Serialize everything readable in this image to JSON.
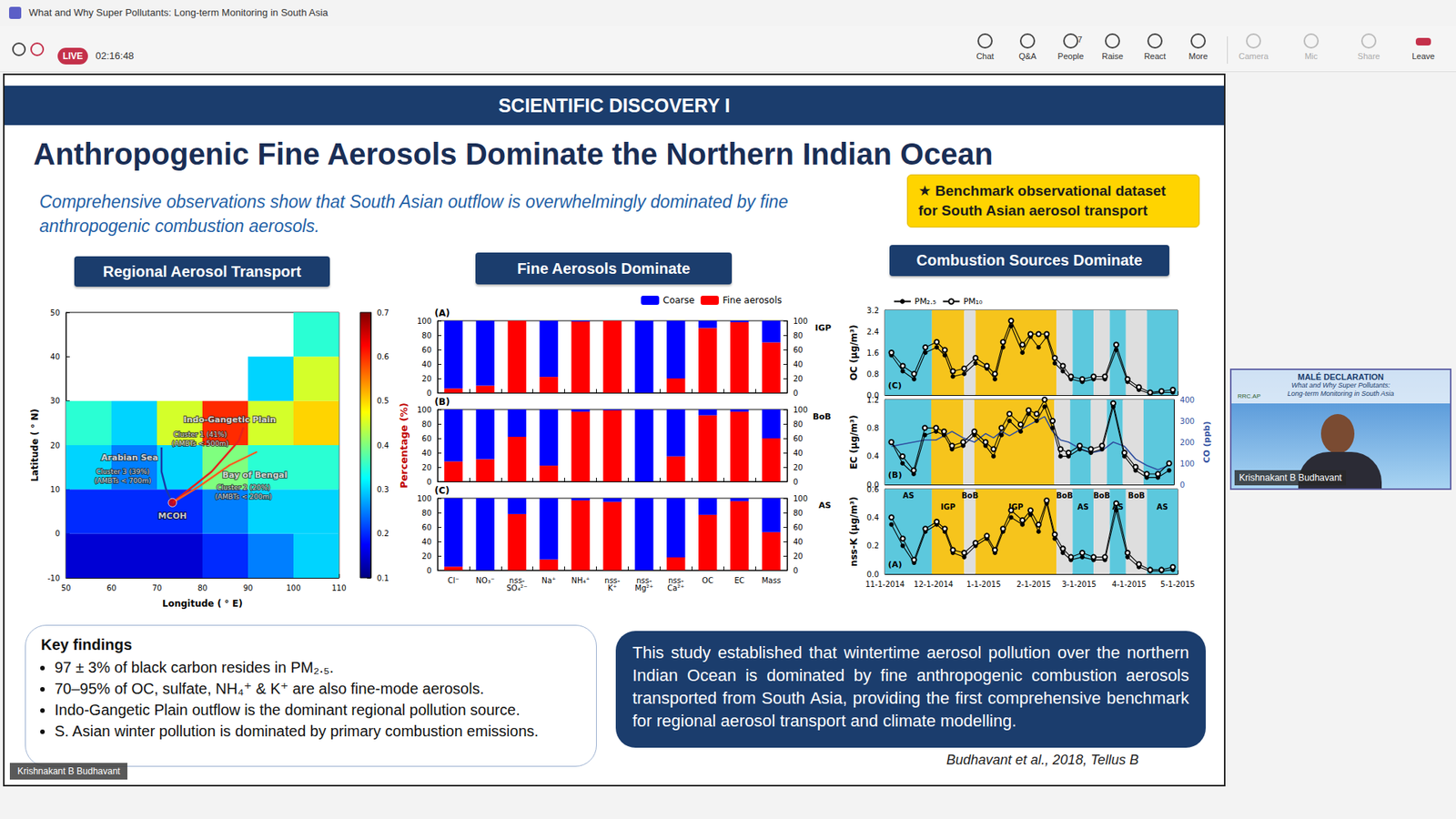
{
  "window": {
    "title": "What and Why Super Pollutants: Long-term Monitoring in South Asia",
    "live": "LIVE",
    "timer": "02:16:48",
    "buttons": [
      "Chat",
      "Q&A",
      "People",
      "Raise",
      "React",
      "More",
      "Camera",
      "Mic",
      "Share",
      "Leave"
    ],
    "people_count": 7
  },
  "slide": {
    "header": "SCIENTIFIC DISCOVERY I",
    "title": "Anthropogenic Fine Aerosols Dominate the Northern Indian Ocean",
    "subtitle": "Comprehensive observations show that South Asian outflow is overwhelmingly dominated by fine anthropogenic combustion aerosols.",
    "badge": "★ Benchmark observational dataset for South Asian aerosol transport",
    "key_findings": {
      "title": "Key findings",
      "items": [
        "97 ± 3% of black carbon resides in PM₂.₅.",
        "70–95% of OC, sulfate, NH₄⁺ & K⁺ are also fine-mode aerosols.",
        "Indo-Gangetic Plain outflow is the dominant regional pollution source.",
        "S. Asian winter pollution is dominated by primary combustion emissions."
      ]
    },
    "conclusion": "This study established that wintertime aerosol pollution over the northern Indian Ocean is dominated by fine anthropogenic combustion aerosols transported from South Asia, providing the first comprehensive benchmark for regional aerosol transport and climate modelling.",
    "citation": "Budhavant  et al., 2018, Tellus B",
    "speaker_tag": "Krishnakant B Budhavant"
  },
  "thumbnail": {
    "title": "MALÉ DECLARATION",
    "subtitle": [
      "What and Why Super Pollutants:",
      "Long-term Monitoring in South Asia"
    ],
    "logo": "RRC.AP",
    "name": "Krishnakant B Budhavant"
  },
  "chart_data": [
    {
      "type": "map",
      "title": "Regional Aerosol Transport",
      "xlabel": "Longitude ( ° E)",
      "ylabel": "Latitude ( ° N)",
      "xlim": [
        50,
        110
      ],
      "xticks": [
        50,
        60,
        70,
        80,
        90,
        100,
        110
      ],
      "ylim": [
        -10,
        50
      ],
      "yticks": [
        -10,
        0,
        10,
        20,
        30,
        40,
        50
      ],
      "aod": {
        "lon_edges": [
          50,
          60,
          70,
          80,
          90,
          100,
          110
        ],
        "lat_edges": [
          -10,
          0,
          10,
          20,
          30,
          40,
          50
        ],
        "values": [
          [
            0.15,
            0.15,
            0.15,
            0.2,
            0.25,
            0.3
          ],
          [
            0.2,
            0.2,
            0.2,
            0.25,
            0.3,
            0.3
          ],
          [
            0.3,
            0.25,
            0.3,
            0.4,
            0.35,
            0.35
          ],
          [
            0.35,
            0.3,
            0.45,
            0.6,
            0.45,
            0.5
          ],
          [
            null,
            null,
            null,
            null,
            0.3,
            0.45
          ],
          [
            null,
            null,
            null,
            null,
            null,
            0.35
          ]
        ]
      },
      "colorbar": {
        "range": [
          0.1,
          0.7
        ],
        "ticks": [
          0.1,
          0.2,
          0.3,
          0.4,
          0.5,
          0.6,
          0.7
        ]
      },
      "trajectories": [
        {
          "color": "#e8201a",
          "path": [
            [
              89,
              24
            ],
            [
              88,
              21
            ],
            [
              82,
              14
            ],
            [
              73.4,
              7
            ]
          ]
        },
        {
          "color": "#ff5a1f",
          "path": [
            [
              92,
              18.5
            ],
            [
              86,
              15.5
            ],
            [
              79,
              10.5
            ],
            [
              73.4,
              7
            ]
          ]
        },
        {
          "color": "#1a3aa8",
          "path": [
            [
              71,
              19.5
            ],
            [
              71,
              14
            ],
            [
              72,
              10
            ],
            [
              73.4,
              7
            ]
          ]
        }
      ],
      "site": {
        "name": "MCOH",
        "lon": 73.4,
        "lat": 7,
        "color": "#e00000"
      },
      "region_labels": [
        {
          "text": "Indo-Gangetic Plain",
          "x": 86,
          "y": 25.8
        },
        {
          "text": "Arabian Sea",
          "x": 64,
          "y": 17.2
        },
        {
          "text": "Bay of Bengal",
          "x": 91.5,
          "y": 13.2
        }
      ],
      "cluster_notes": [
        {
          "text": "Cluster 1 (41%)",
          "x": 79.5,
          "y": 22.4
        },
        {
          "text": "(AMBTs < 500m)",
          "x": 79.5,
          "y": 20.3
        },
        {
          "text": "Cluster 3 (39%)",
          "x": 62.5,
          "y": 14
        },
        {
          "text": "(AMBTs < 700m)",
          "x": 62.5,
          "y": 11.9
        },
        {
          "text": "Cluster 2 (20%)",
          "x": 89,
          "y": 10.4
        },
        {
          "text": "(AMBTs < 200m)",
          "x": 89,
          "y": 8.3
        }
      ]
    },
    {
      "type": "bar",
      "title": "Fine Aerosols Dominate",
      "stacked": true,
      "legend": "top",
      "ylabel": "Percentage (%)",
      "categories": [
        "Cl⁻",
        "NO₃⁻",
        "nss-SO₄²⁻",
        "Na⁺",
        "NH₄⁺",
        "nss-K⁺",
        "nss-Mg²⁺",
        "nss-Ca²⁺",
        "OC",
        "EC",
        "Mass"
      ],
      "ylim": [
        0,
        100
      ],
      "yticks": [
        0,
        20,
        40,
        60,
        80,
        100
      ],
      "y2lim": [
        0,
        100
      ],
      "y2ticks": [
        0,
        20,
        40,
        60,
        80,
        100
      ],
      "panels": [
        {
          "label": "(A)",
          "region": "IGP",
          "series": [
            {
              "name": "Coarse",
              "color": "#0000ff",
              "values": [
                94,
                90,
                0,
                78,
                1,
                0,
                100,
                80,
                10,
                2,
                30
              ]
            },
            {
              "name": "Fine aerosols",
              "color": "#ff0000",
              "values": [
                6,
                10,
                100,
                22,
                99,
                100,
                0,
                20,
                90,
                98,
                70
              ]
            }
          ]
        },
        {
          "label": "(B)",
          "region": "BoB",
          "series": [
            {
              "name": "Coarse",
              "color": "#0000ff",
              "values": [
                72,
                69,
                38,
                78,
                3,
                1,
                100,
                65,
                8,
                3,
                40
              ]
            },
            {
              "name": "Fine aerosols",
              "color": "#ff0000",
              "values": [
                28,
                31,
                62,
                22,
                97,
                99,
                0,
                35,
                92,
                97,
                60
              ]
            }
          ]
        },
        {
          "label": "(C)",
          "region": "AS",
          "series": [
            {
              "name": "Coarse",
              "color": "#0000ff",
              "values": [
                95,
                100,
                22,
                85,
                3,
                5,
                100,
                82,
                23,
                4,
                47
              ]
            },
            {
              "name": "Fine aerosols",
              "color": "#ff0000",
              "values": [
                5,
                0,
                78,
                15,
                97,
                95,
                0,
                18,
                77,
                96,
                53
              ]
            }
          ]
        }
      ]
    },
    {
      "type": "line",
      "title": "Combustion Sources Dominate",
      "legend": "top",
      "x": [
        "2014-11-05",
        "2014-11-12",
        "2014-11-19",
        "2014-11-26",
        "2014-12-03",
        "2014-12-08",
        "2014-12-13",
        "2014-12-20",
        "2014-12-27",
        "2015-01-03",
        "2015-01-08",
        "2015-01-13",
        "2015-01-18",
        "2015-01-25",
        "2015-01-30",
        "2015-02-04",
        "2015-02-09",
        "2015-02-14",
        "2015-02-19",
        "2015-02-24",
        "2015-03-03",
        "2015-03-10",
        "2015-03-17",
        "2015-03-24",
        "2015-03-31",
        "2015-04-07",
        "2015-04-14",
        "2015-04-21",
        "2015-04-28"
      ],
      "xlim": [
        "2014-11-01",
        "2015-05-01"
      ],
      "xticks": [
        {
          "value": "2014-11-01",
          "label": "11-1-2014"
        },
        {
          "value": "2014-12-01",
          "label": "12-1-2014"
        },
        {
          "value": "2015-01-01",
          "label": "1-1-2015"
        },
        {
          "value": "2015-02-01",
          "label": "2-1-2015"
        },
        {
          "value": "2015-03-01",
          "label": "3-1-2015"
        },
        {
          "value": "2015-04-01",
          "label": "4-1-2015"
        },
        {
          "value": "2015-05-01",
          "label": "5-1-2015"
        }
      ],
      "bands": [
        {
          "start": "2014-11-01",
          "end": "2014-11-30",
          "label": "AS",
          "color": "#5cc8dd"
        },
        {
          "start": "2014-11-30",
          "end": "2014-12-20",
          "label": "IGP",
          "color": "#f6c41c"
        },
        {
          "start": "2014-12-20",
          "end": "2014-12-27",
          "label": "BoB",
          "color": "#dedede"
        },
        {
          "start": "2014-12-27",
          "end": "2015-02-15",
          "label": "IGP",
          "color": "#f6c41c"
        },
        {
          "start": "2015-02-15",
          "end": "2015-02-25",
          "label": "BoB",
          "color": "#dedede"
        },
        {
          "start": "2015-02-25",
          "end": "2015-03-10",
          "label": "AS",
          "color": "#5cc8dd"
        },
        {
          "start": "2015-03-10",
          "end": "2015-03-20",
          "label": "BoB",
          "color": "#dedede"
        },
        {
          "start": "2015-03-20",
          "end": "2015-03-30",
          "label": "AS",
          "color": "#5cc8dd"
        },
        {
          "start": "2015-03-30",
          "end": "2015-04-12",
          "label": "BoB",
          "color": "#dedede"
        },
        {
          "start": "2015-04-12",
          "end": "2015-05-01",
          "label": "AS",
          "color": "#5cc8dd"
        }
      ],
      "panels": [
        {
          "label": "(C)",
          "ylabel": "OC (µg/m³)",
          "ylim": [
            0,
            3.2
          ],
          "yticks": [
            {
              "value": 0,
              "label": "0.0"
            },
            0.8,
            1.6,
            2.4,
            3.2
          ],
          "series": [
            {
              "name": "PM₂.₅",
              "color": "#000000",
              "marker": "filled_circle",
              "values": [
                1.5,
                0.9,
                0.6,
                1.6,
                1.8,
                1.5,
                0.7,
                0.8,
                1.2,
                1.0,
                0.6,
                1.8,
                2.6,
                1.6,
                2.2,
                1.8,
                2.2,
                1.2,
                0.9,
                0.6,
                0.5,
                0.6,
                0.6,
                1.7,
                0.5,
                0.2,
                0.05,
                0.1,
                0.1
              ]
            },
            {
              "name": "PM₁₀",
              "color": "#000000",
              "marker": "open_circle",
              "values": [
                1.6,
                1.1,
                0.8,
                1.8,
                2.0,
                1.7,
                0.9,
                1.0,
                1.4,
                1.1,
                0.8,
                2.0,
                2.8,
                1.9,
                2.3,
                2.3,
                2.3,
                1.4,
                1.1,
                0.7,
                0.6,
                0.7,
                0.7,
                1.9,
                0.6,
                0.3,
                0.1,
                0.15,
                0.2
              ]
            }
          ]
        },
        {
          "label": "(B)",
          "ylabel": "EC (µg/m³)",
          "ylim": [
            0,
            1.2
          ],
          "yticks": [
            {
              "value": 0,
              "label": "0.0"
            },
            0.4,
            0.8,
            1.2
          ],
          "y2label": "CO (ppb)",
          "y2lim": [
            0,
            400
          ],
          "y2ticks": [
            0,
            100,
            200,
            300,
            400
          ],
          "series": [
            {
              "name": "PM₂.₅",
              "color": "#000000",
              "marker": "filled_circle",
              "values": [
                0.6,
                0.3,
                0.15,
                0.7,
                0.75,
                0.7,
                0.5,
                0.55,
                0.7,
                0.55,
                0.4,
                0.7,
                0.9,
                0.75,
                1.0,
                0.9,
                1.1,
                0.8,
                0.4,
                0.4,
                0.5,
                0.45,
                0.5,
                1.1,
                0.4,
                0.2,
                0.1,
                0.1,
                0.2
              ]
            },
            {
              "name": "PM₁₀",
              "color": "#000000",
              "marker": "open_circle",
              "values": [
                0.6,
                0.4,
                0.2,
                0.8,
                0.8,
                0.75,
                0.55,
                0.6,
                0.75,
                0.6,
                0.5,
                0.8,
                1.0,
                0.85,
                1.05,
                1.0,
                1.2,
                0.9,
                0.5,
                0.45,
                0.55,
                0.5,
                0.55,
                1.15,
                0.45,
                0.25,
                0.15,
                0.15,
                0.3
              ]
            },
            {
              "axis": "y2",
              "color": "#2f4fa0",
              "marker": "none",
              "values": [
                180,
                190,
                200,
                210,
                210,
                230,
                250,
                220,
                200,
                240,
                220,
                250,
                230,
                260,
                280,
                300,
                320,
                250,
                210,
                200,
                170,
                150,
                160,
                200,
                180,
                120,
                90,
                70,
                90
              ]
            }
          ]
        },
        {
          "label": "(A)",
          "ylabel": "nss-K (µg/m³)",
          "ylim": [
            0,
            0.6
          ],
          "yticks": [
            {
              "value": 0,
              "label": "0.0"
            },
            0.2,
            0.4,
            0.6
          ],
          "series": [
            {
              "name": "PM₂.₅",
              "color": "#000000",
              "marker": "filled_circle",
              "values": [
                0.35,
                0.2,
                0.08,
                0.3,
                0.35,
                0.3,
                0.15,
                0.12,
                0.2,
                0.25,
                0.15,
                0.3,
                0.4,
                0.35,
                0.42,
                0.3,
                0.5,
                0.25,
                0.15,
                0.1,
                0.12,
                0.1,
                0.1,
                0.45,
                0.12,
                0.05,
                0.02,
                0.02,
                0.03
              ]
            },
            {
              "name": "PM₁₀",
              "color": "#000000",
              "marker": "open_circle",
              "values": [
                0.4,
                0.25,
                0.1,
                0.32,
                0.37,
                0.32,
                0.17,
                0.15,
                0.22,
                0.27,
                0.17,
                0.32,
                0.45,
                0.38,
                0.45,
                0.35,
                0.52,
                0.28,
                0.18,
                0.12,
                0.15,
                0.12,
                0.12,
                0.5,
                0.15,
                0.07,
                0.03,
                0.03,
                0.05
              ]
            }
          ]
        }
      ]
    }
  ]
}
